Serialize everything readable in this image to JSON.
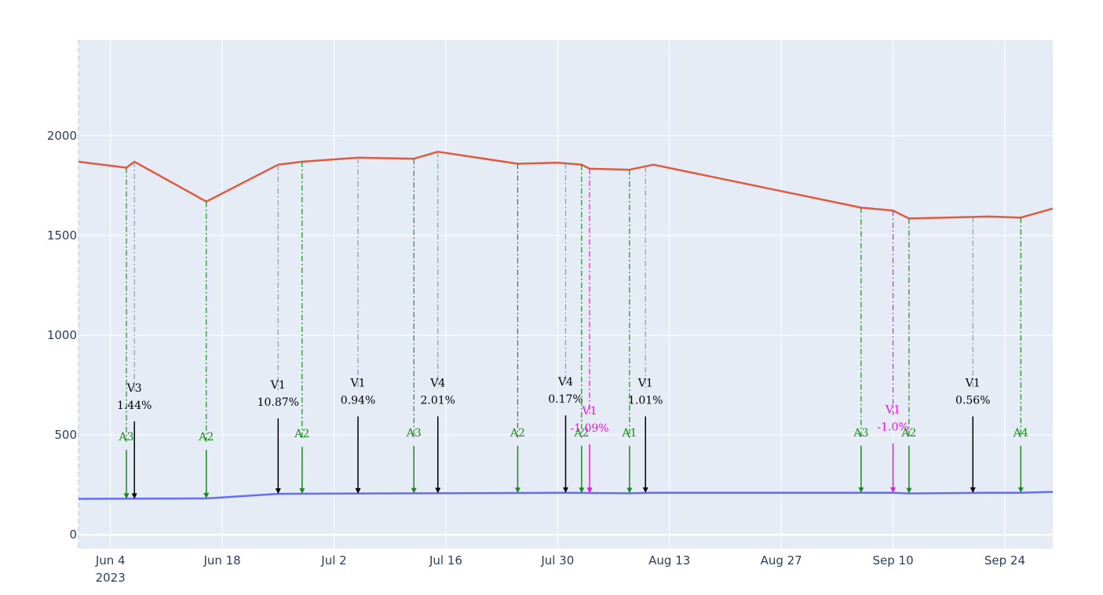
{
  "chart_data": {
    "type": "line",
    "grid": true,
    "colors": {
      "plot_bg": "#e5ecf6",
      "grid": "#ffffff",
      "series_top": "#e15a3f",
      "series_bottom": "#636efa",
      "label_black": "#000000",
      "label_green": "#1a8c1a",
      "label_magenta": "#ee11ee",
      "drop_gray": "#8a9bb0"
    },
    "x_range": [
      "2023-05-31",
      "2023-09-30"
    ],
    "y_range": [
      -70,
      2480
    ],
    "x_ticks": [
      {
        "date": "2023-06-04",
        "label": "Jun 4",
        "sublabel": "2023"
      },
      {
        "date": "2023-06-18",
        "label": "Jun 18",
        "sublabel": ""
      },
      {
        "date": "2023-07-02",
        "label": "Jul 2",
        "sublabel": ""
      },
      {
        "date": "2023-07-16",
        "label": "Jul 16",
        "sublabel": ""
      },
      {
        "date": "2023-07-30",
        "label": "Jul 30",
        "sublabel": ""
      },
      {
        "date": "2023-08-13",
        "label": "Aug 13",
        "sublabel": ""
      },
      {
        "date": "2023-08-27",
        "label": "Aug 27",
        "sublabel": ""
      },
      {
        "date": "2023-09-10",
        "label": "Sep 10",
        "sublabel": ""
      },
      {
        "date": "2023-09-24",
        "label": "Sep 24",
        "sublabel": ""
      }
    ],
    "y_ticks": [
      {
        "value": 0,
        "label": "0"
      },
      {
        "value": 500,
        "label": "500"
      },
      {
        "value": 1000,
        "label": "1000"
      },
      {
        "value": 1500,
        "label": "1500"
      },
      {
        "value": 2000,
        "label": "2000"
      }
    ],
    "series": [
      {
        "key": "top",
        "points": [
          [
            "2023-05-31",
            1870
          ],
          [
            "2023-06-06",
            1840
          ],
          [
            "2023-06-07",
            1870
          ],
          [
            "2023-06-16",
            1670
          ],
          [
            "2023-06-25",
            1855
          ],
          [
            "2023-06-28",
            1870
          ],
          [
            "2023-07-05",
            1890
          ],
          [
            "2023-07-12",
            1885
          ],
          [
            "2023-07-15",
            1920
          ],
          [
            "2023-07-25",
            1860
          ],
          [
            "2023-07-30",
            1865
          ],
          [
            "2023-08-02",
            1855
          ],
          [
            "2023-08-03",
            1835
          ],
          [
            "2023-08-08",
            1830
          ],
          [
            "2023-08-11",
            1855
          ],
          [
            "2023-09-06",
            1640
          ],
          [
            "2023-09-10",
            1625
          ],
          [
            "2023-09-12",
            1585
          ],
          [
            "2023-09-22",
            1595
          ],
          [
            "2023-09-26",
            1590
          ],
          [
            "2023-09-30",
            1635
          ]
        ]
      },
      {
        "key": "bottom",
        "points": [
          [
            "2023-05-31",
            180
          ],
          [
            "2023-06-16",
            182
          ],
          [
            "2023-06-25",
            205
          ],
          [
            "2023-07-31",
            210
          ],
          [
            "2023-08-08",
            208
          ],
          [
            "2023-08-11",
            210
          ],
          [
            "2023-09-10",
            210
          ],
          [
            "2023-09-12",
            207
          ],
          [
            "2023-09-22",
            210
          ],
          [
            "2023-09-26",
            210
          ],
          [
            "2023-09-30",
            215
          ]
        ]
      }
    ],
    "annotations": [
      {
        "date": "2023-06-06",
        "top": 1840,
        "bottom": 180,
        "line1": "A3",
        "line2": "",
        "label_y": 465,
        "color": "green"
      },
      {
        "date": "2023-06-07",
        "top": 1870,
        "bottom": 180,
        "line1": "V3",
        "line2": "1.44%",
        "label_y": 710,
        "color": "black"
      },
      {
        "date": "2023-06-16",
        "top": 1670,
        "bottom": 182,
        "line1": "A2",
        "line2": "",
        "label_y": 465,
        "color": "green"
      },
      {
        "date": "2023-06-25",
        "top": 1855,
        "bottom": 205,
        "line1": "V1",
        "line2": "10.87%",
        "label_y": 725,
        "color": "black"
      },
      {
        "date": "2023-06-28",
        "top": 1870,
        "bottom": 205,
        "line1": "A2",
        "line2": "",
        "label_y": 480,
        "color": "green"
      },
      {
        "date": "2023-07-05",
        "top": 1890,
        "bottom": 206,
        "line1": "V1",
        "line2": "0.94%",
        "label_y": 735,
        "color": "black"
      },
      {
        "date": "2023-07-12",
        "top": 1885,
        "bottom": 207,
        "line1": "A3",
        "line2": "",
        "label_y": 485,
        "color": "green"
      },
      {
        "date": "2023-07-15",
        "top": 1920,
        "bottom": 208,
        "line1": "V4",
        "line2": "2.01%",
        "label_y": 735,
        "color": "black"
      },
      {
        "date": "2023-07-25",
        "top": 1860,
        "bottom": 209,
        "line1": "A2",
        "line2": "",
        "label_y": 485,
        "color": "green"
      },
      {
        "date": "2023-07-31",
        "top": 1862,
        "bottom": 210,
        "line1": "V4",
        "line2": "0.17%",
        "label_y": 740,
        "color": "black"
      },
      {
        "date": "2023-08-02",
        "top": 1855,
        "bottom": 209,
        "line1": "A2",
        "line2": "",
        "label_y": 485,
        "color": "green"
      },
      {
        "date": "2023-08-03",
        "top": 1835,
        "bottom": 209,
        "line1": "V1",
        "line2": "-1.09%",
        "label_y": 595,
        "color": "magenta"
      },
      {
        "date": "2023-08-08",
        "top": 1830,
        "bottom": 208,
        "line1": "A1",
        "line2": "",
        "label_y": 485,
        "color": "green"
      },
      {
        "date": "2023-08-10",
        "top": 1845,
        "bottom": 210,
        "line1": "V1",
        "line2": "1.01%",
        "label_y": 735,
        "color": "black"
      },
      {
        "date": "2023-09-06",
        "top": 1640,
        "bottom": 210,
        "line1": "A3",
        "line2": "",
        "label_y": 485,
        "color": "green"
      },
      {
        "date": "2023-09-10",
        "top": 1625,
        "bottom": 210,
        "line1": "V1",
        "line2": "-1.0%",
        "label_y": 600,
        "color": "magenta"
      },
      {
        "date": "2023-09-12",
        "top": 1585,
        "bottom": 207,
        "line1": "A2",
        "line2": "",
        "label_y": 485,
        "color": "green"
      },
      {
        "date": "2023-09-20",
        "top": 1592,
        "bottom": 210,
        "line1": "V1",
        "line2": "0.56%",
        "label_y": 735,
        "color": "black"
      },
      {
        "date": "2023-09-26",
        "top": 1590,
        "bottom": 210,
        "line1": "A4",
        "line2": "",
        "label_y": 485,
        "color": "green"
      }
    ]
  }
}
